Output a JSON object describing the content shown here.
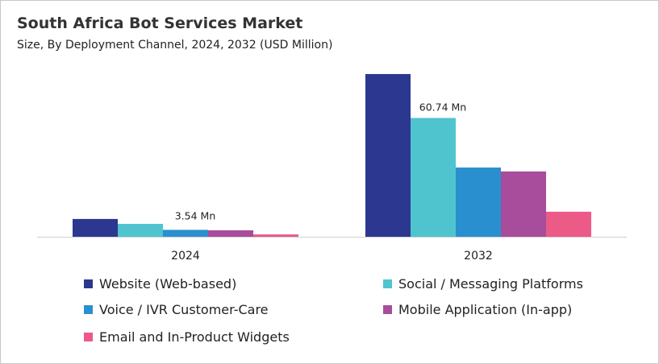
{
  "chart_data": {
    "type": "bar",
    "title": "South Africa Bot Services Market",
    "subtitle": "Size, By Deployment Channel, 2024, 2032 (USD Million)",
    "categories": [
      "2024",
      "2032"
    ],
    "series": [
      {
        "name": "Website (Web-based)",
        "color": "#2c3790",
        "values": [
          9.1,
          83.2
        ]
      },
      {
        "name": "Social / Messaging Platforms",
        "color": "#4fc4cf",
        "values": [
          6.6,
          60.74
        ]
      },
      {
        "name": "Voice / IVR Customer-Care",
        "color": "#2a8fcf",
        "values": [
          3.54,
          35.4
        ]
      },
      {
        "name": "Mobile Application (In-app)",
        "color": "#a84c9c",
        "values": [
          3.3,
          33.4
        ]
      },
      {
        "name": "Email and In-Product Widgets",
        "color": "#ec5a87",
        "values": [
          1.2,
          12.8
        ]
      }
    ],
    "data_labels": [
      {
        "category": "2024",
        "series": "Voice / IVR Customer-Care",
        "text": "3.54 Mn"
      },
      {
        "category": "2032",
        "series": "Social / Messaging Platforms",
        "text": "60.74 Mn"
      }
    ],
    "ylim": [
      0,
      85
    ],
    "grid": false,
    "y_axis_visible": false,
    "legend_placement": "bottom"
  }
}
